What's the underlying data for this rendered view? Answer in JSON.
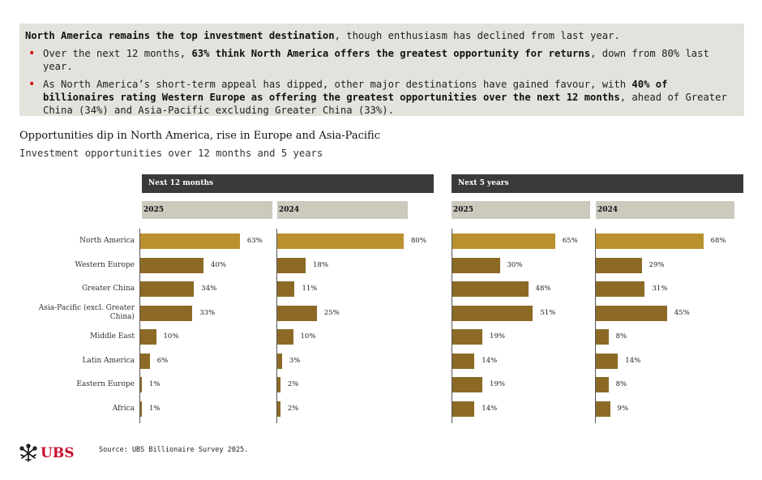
{
  "summary": {
    "lead_bold": "North America remains the top investment destination",
    "lead_rest": ", though enthusiasm has declined from last year.",
    "bullet1_a": "Over the next 12 months, ",
    "bullet1_bold": "63% think North America offers the greatest opportunity for returns",
    "bullet1_c": ", down from 80% last year.",
    "bullet2_a": "As North America’s short-term appeal has dipped, other major destinations have gained favour, with ",
    "bullet2_bold": "40% of billionaires rating Western Europe as offering the greatest opportunities over the next 12 months",
    "bullet2_c": ", ahead of Greater China (34%) and Asia-Pacific excluding Greater China (33%)."
  },
  "chart_data": {
    "type": "bar",
    "orientation": "horizontal",
    "title": "Opportunities dip in North America, rise in Europe and Asia-Pacific",
    "subtitle": "Investment opportunities over 12 months and 5 years",
    "categories": [
      "North America",
      "Western Europe",
      "Greater China",
      "Asia-Pacific (excl. Greater China)",
      "Middle East",
      "Latin America",
      "Eastern Europe",
      "Africa"
    ],
    "groups": [
      {
        "name": "Next 12 months",
        "series": [
          {
            "name": "2025",
            "values": [
              63,
              40,
              34,
              33,
              10,
              6,
              1,
              1
            ]
          },
          {
            "name": "2024",
            "values": [
              80,
              18,
              11,
              25,
              10,
              3,
              2,
              2
            ]
          }
        ]
      },
      {
        "name": "Next 5 years",
        "series": [
          {
            "name": "2025",
            "values": [
              65,
              30,
              48,
              51,
              19,
              14,
              19,
              14
            ]
          },
          {
            "name": "2024",
            "values": [
              68,
              29,
              31,
              45,
              8,
              14,
              8,
              9
            ]
          }
        ]
      }
    ],
    "value_suffix": "%",
    "xlim": [
      0,
      100
    ],
    "colors": {
      "highlight": "#b9912e",
      "default": "#8c6a26"
    }
  },
  "footer": {
    "logo_text": "UBS",
    "logo_icon": "ubs-keys-logo-icon",
    "source": "Source: UBS Billionaire Survey 2025."
  }
}
